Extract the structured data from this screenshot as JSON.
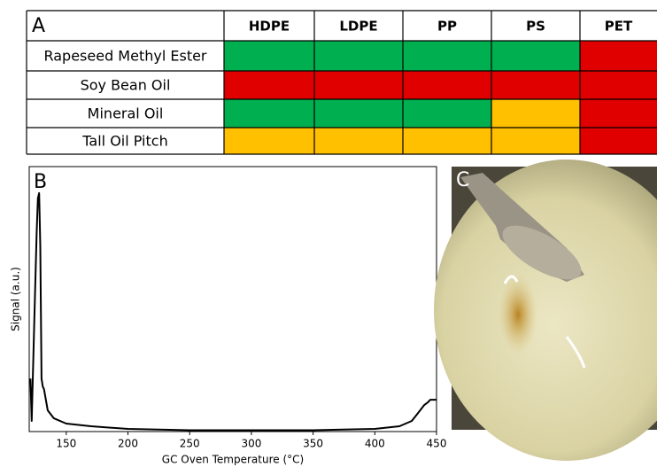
{
  "table": {
    "panel_label": "A",
    "columns": [
      "HDPE",
      "LDPE",
      "PP",
      "PS",
      "PET"
    ],
    "rows": [
      {
        "label": "Rapeseed Methyl Ester",
        "cells": [
          "#00b050",
          "#00b050",
          "#00b050",
          "#00b050",
          "#e00000"
        ]
      },
      {
        "label": "Soy Bean Oil",
        "cells": [
          "#e00000",
          "#e00000",
          "#e00000",
          "#e00000",
          "#e00000"
        ]
      },
      {
        "label": "Mineral Oil",
        "cells": [
          "#00b050",
          "#00b050",
          "#00b050",
          "#ffc000",
          "#e00000"
        ]
      },
      {
        "label": "Tall Oil Pitch",
        "cells": [
          "#ffc000",
          "#ffc000",
          "#ffc000",
          "#ffc000",
          "#e00000"
        ]
      }
    ]
  },
  "chart_data": {
    "type": "line",
    "panel_label": "B",
    "x_label": "GC Oven Temperature (°C)",
    "y_label": "Signal (a.u.)",
    "x": [
      121,
      122,
      124,
      126,
      127,
      128,
      129,
      130,
      131,
      132,
      135,
      140,
      150,
      170,
      200,
      250,
      300,
      350,
      400,
      420,
      430,
      435,
      440,
      443,
      445,
      448,
      450
    ],
    "values": [
      20,
      4,
      40,
      75,
      88,
      90,
      70,
      20,
      17,
      16,
      8,
      5,
      3,
      2,
      1,
      0.5,
      0.5,
      0.5,
      1,
      2,
      4,
      7,
      10,
      11,
      12,
      12,
      12
    ],
    "color": "#000000",
    "xlim": [
      120,
      450
    ],
    "ylim": [
      0,
      100
    ],
    "xticks": [
      150,
      200,
      250,
      300,
      350,
      400,
      450
    ]
  },
  "photo": {
    "panel_label": "C"
  }
}
